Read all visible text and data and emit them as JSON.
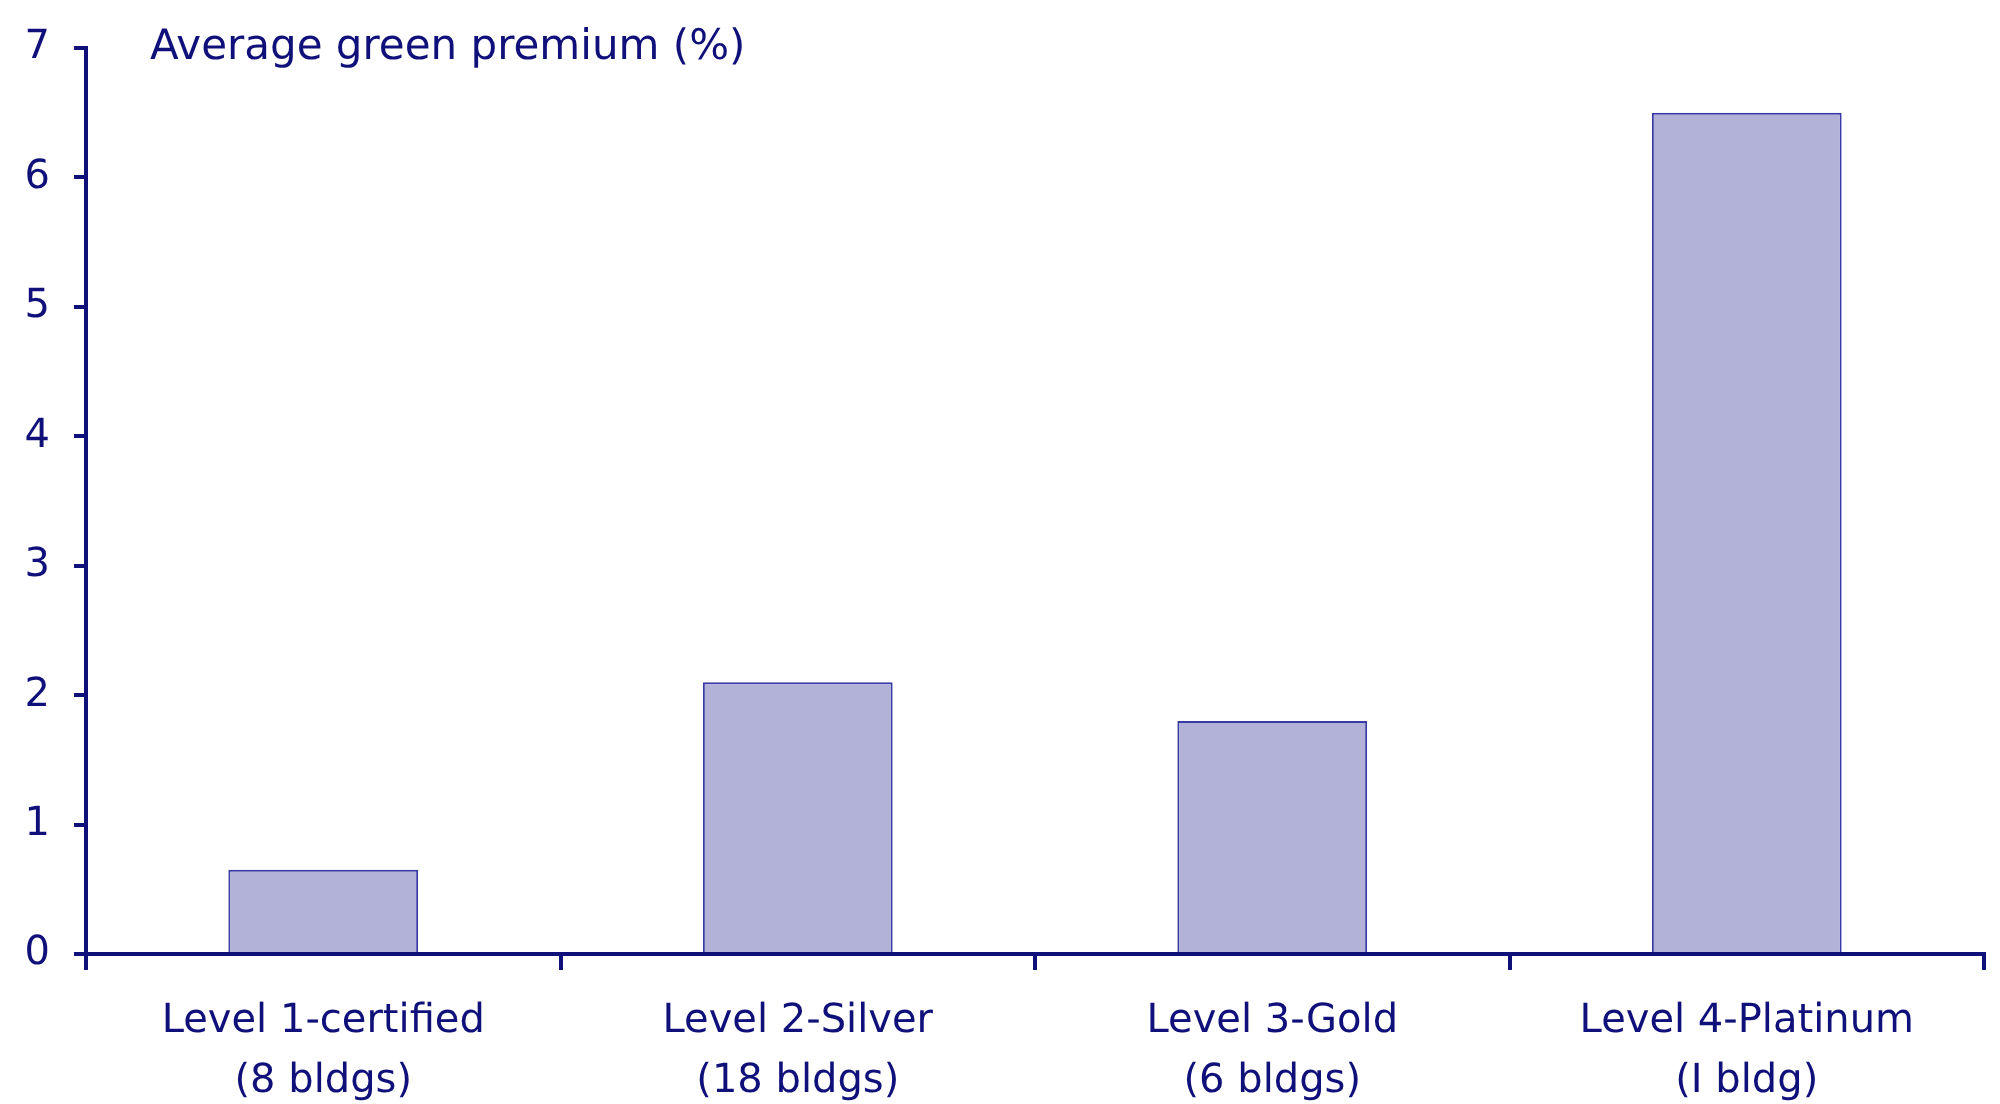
{
  "chart_data": {
    "type": "bar",
    "ylabel": "Average green premium (%)",
    "categories": [
      "Level 1-certified (8 bldgs)",
      "Level 2-Silver (18 bldgs)",
      "Level 3-Gold (6 bldgs)",
      "Level 4-Platinum (I bldg)"
    ],
    "values": [
      0.65,
      2.1,
      1.8,
      6.5
    ],
    "color": "#b2b2d8",
    "ylim": [
      0,
      7
    ],
    "yticks": [
      0,
      1,
      2,
      3,
      4,
      5,
      6,
      7
    ]
  }
}
